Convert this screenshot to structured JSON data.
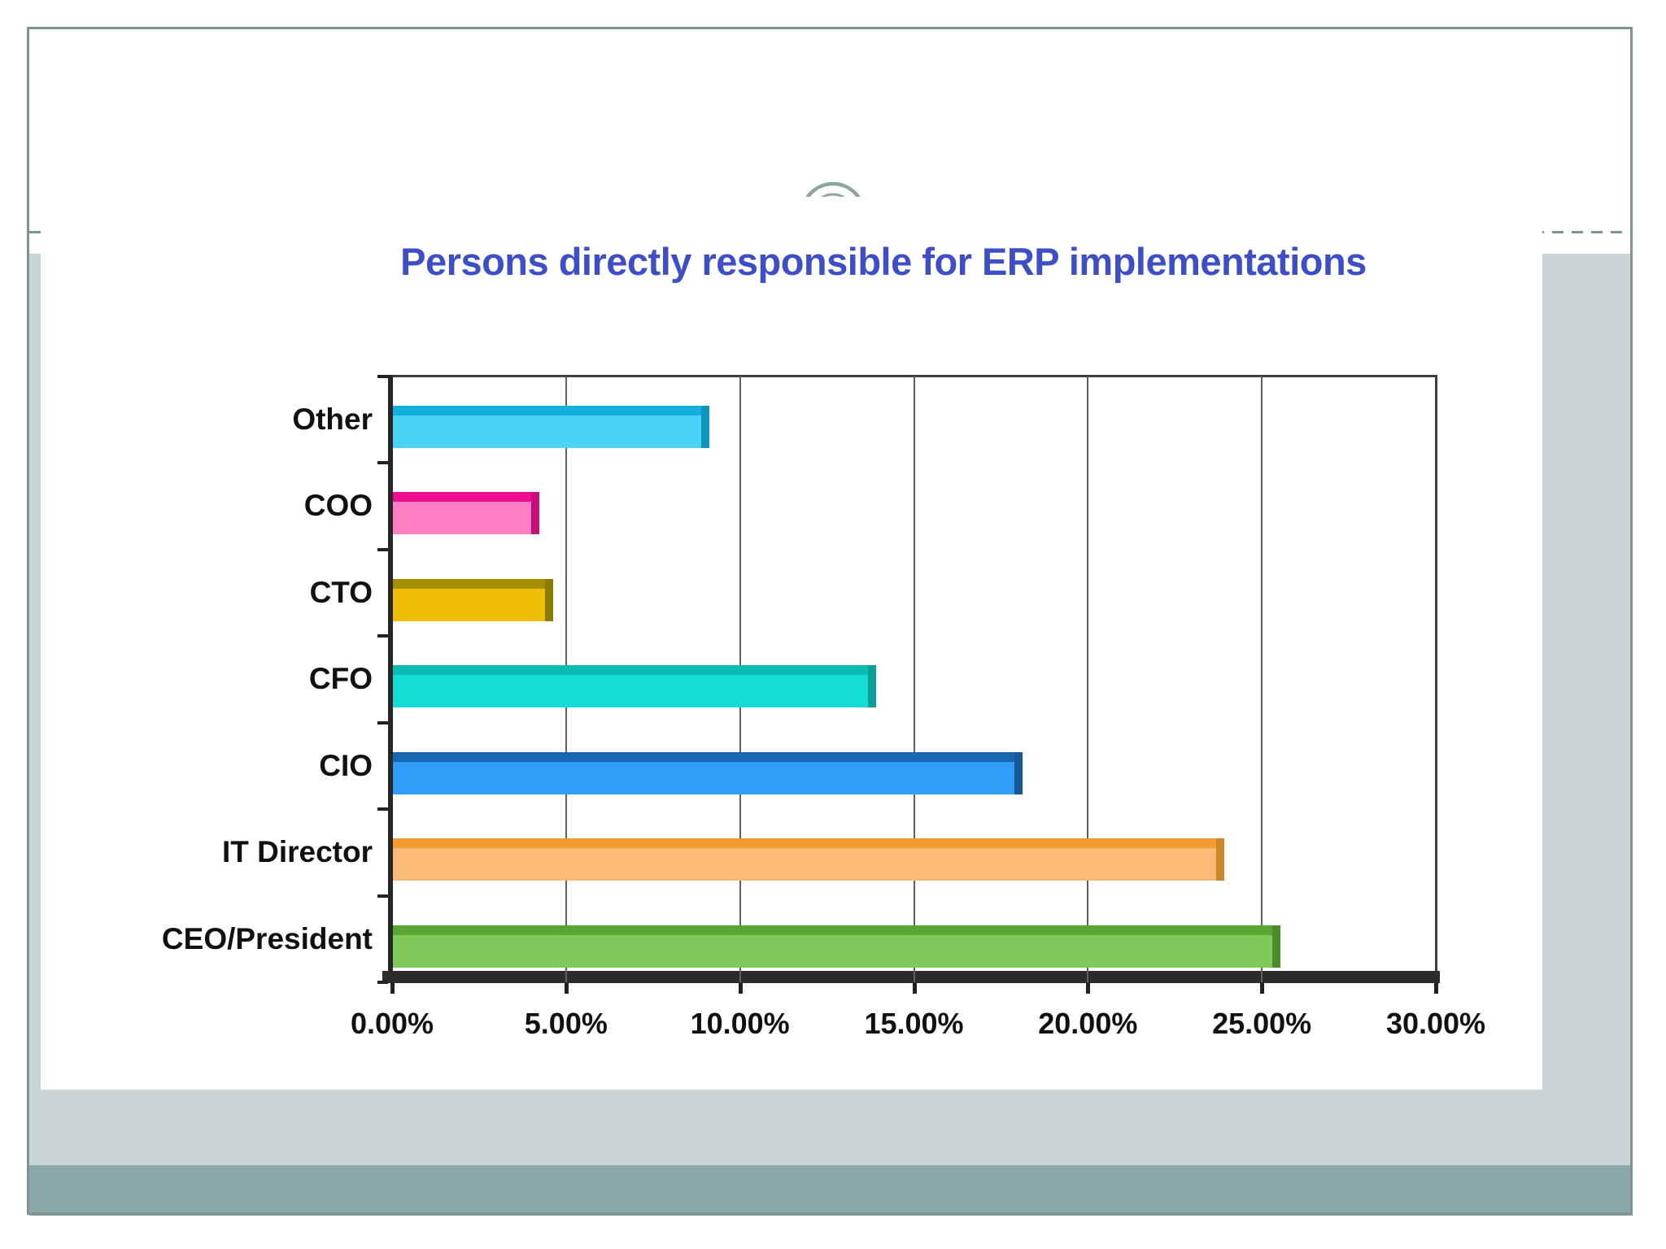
{
  "slide": {
    "title": "Persons directly responsible for ERP implementations"
  },
  "chart_data": {
    "type": "bar",
    "orientation": "horizontal",
    "title": "Persons directly responsible for ERP implementations",
    "categories": [
      "Other",
      "COO",
      "CTO",
      "CFO",
      "CIO",
      "IT Director",
      "CEO/President"
    ],
    "values": [
      9.1,
      4.2,
      4.6,
      13.9,
      18.1,
      23.9,
      25.5
    ],
    "value_unit": "percent",
    "xlim": [
      0,
      30
    ],
    "x_tick_values": [
      0,
      5,
      10,
      15,
      20,
      25,
      30
    ],
    "x_tick_labels": [
      "0.00%",
      "5.00%",
      "10.00%",
      "15.00%",
      "20.00%",
      "25.00%",
      "30.00%"
    ],
    "grid": true,
    "legend": false,
    "bar_colors": [
      "#49D3F6",
      "#FF7FC3",
      "#EEBE05",
      "#14DDD5",
      "#2F9CF5",
      "#FBBB77",
      "#7FCA5B"
    ],
    "bar_edge_colors": [
      "#12AEDC",
      "#EE0D90",
      "#A38F00",
      "#0CBAB4",
      "#1767B0",
      "#F29B30",
      "#58A534"
    ]
  },
  "theme": {
    "title_color": "#3D4EC6",
    "frame_color": "#7E9492",
    "panel_light_color": "#C9D4D6",
    "panel_dark_color": "#8BA8A8",
    "ornament_color": "#8DA4A0",
    "axis_color": "#262626",
    "gridline_color": "#5F5F5F",
    "label_color": "#111111"
  }
}
